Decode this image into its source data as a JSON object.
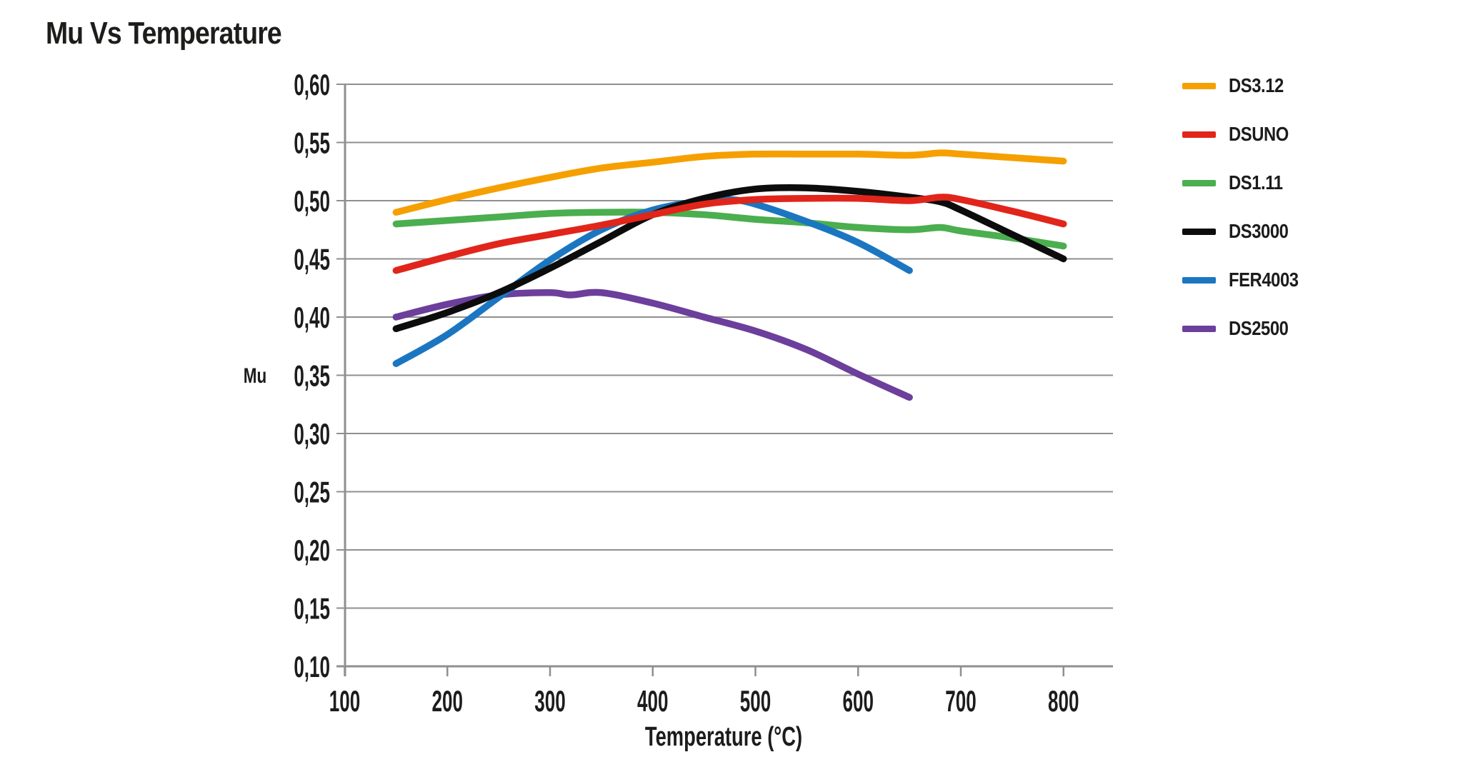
{
  "page": {
    "title": "Mu Vs Temperature"
  },
  "chart_data": {
    "type": "line",
    "title": "Mu Vs Temperature",
    "xlabel": "Temperature (°C)",
    "ylabel": "Mu",
    "xlim": [
      100,
      850
    ],
    "ylim": [
      0.1,
      0.6
    ],
    "grid": "horizontal",
    "grid_color": "#8f8f8f",
    "text_color": "#1c1c1c",
    "legend_position": "right",
    "decimal_separator": ",",
    "x_ticks": {
      "values": [
        100,
        200,
        300,
        400,
        500,
        600,
        700,
        800
      ],
      "labels": [
        "100",
        "200",
        "300",
        "400",
        "500",
        "600",
        "700",
        "800"
      ]
    },
    "y_ticks": {
      "values": [
        0.6,
        0.55,
        0.5,
        0.45,
        0.4,
        0.35,
        0.3,
        0.25,
        0.2,
        0.15,
        0.1
      ],
      "labels": [
        "0,60",
        "0,55",
        "0,50",
        "0,45",
        "0,40",
        "0,35",
        "0,30",
        "0,25",
        "0,20",
        "0,15",
        "0,10"
      ]
    },
    "draw_order": [
      "DS2500",
      "DS1.11",
      "FER4003",
      "DS3000",
      "DSUNO",
      "DS3.12"
    ],
    "series": [
      {
        "name": "DS3.12",
        "color": "#F5A000",
        "points": [
          [
            150,
            0.49
          ],
          [
            200,
            0.501
          ],
          [
            250,
            0.511
          ],
          [
            300,
            0.52
          ],
          [
            350,
            0.528
          ],
          [
            400,
            0.533
          ],
          [
            450,
            0.538
          ],
          [
            500,
            0.54
          ],
          [
            550,
            0.54
          ],
          [
            600,
            0.54
          ],
          [
            650,
            0.539
          ],
          [
            680,
            0.541
          ],
          [
            700,
            0.54
          ],
          [
            750,
            0.537
          ],
          [
            800,
            0.534
          ]
        ]
      },
      {
        "name": "DSUNO",
        "color": "#E1251B",
        "points": [
          [
            150,
            0.44
          ],
          [
            200,
            0.452
          ],
          [
            250,
            0.463
          ],
          [
            300,
            0.471
          ],
          [
            350,
            0.479
          ],
          [
            400,
            0.488
          ],
          [
            450,
            0.497
          ],
          [
            500,
            0.501
          ],
          [
            550,
            0.502
          ],
          [
            600,
            0.502
          ],
          [
            650,
            0.5
          ],
          [
            680,
            0.503
          ],
          [
            700,
            0.501
          ],
          [
            750,
            0.491
          ],
          [
            800,
            0.48
          ]
        ]
      },
      {
        "name": "DS1.11",
        "color": "#4BAE4F",
        "points": [
          [
            150,
            0.48
          ],
          [
            200,
            0.483
          ],
          [
            250,
            0.486
          ],
          [
            300,
            0.489
          ],
          [
            350,
            0.49
          ],
          [
            400,
            0.49
          ],
          [
            450,
            0.488
          ],
          [
            500,
            0.484
          ],
          [
            550,
            0.481
          ],
          [
            600,
            0.477
          ],
          [
            650,
            0.475
          ],
          [
            680,
            0.477
          ],
          [
            700,
            0.474
          ],
          [
            750,
            0.468
          ],
          [
            800,
            0.461
          ]
        ]
      },
      {
        "name": "DS3000",
        "color": "#0c0c0c",
        "points": [
          [
            150,
            0.39
          ],
          [
            200,
            0.404
          ],
          [
            250,
            0.421
          ],
          [
            300,
            0.442
          ],
          [
            350,
            0.465
          ],
          [
            400,
            0.488
          ],
          [
            450,
            0.502
          ],
          [
            500,
            0.51
          ],
          [
            550,
            0.511
          ],
          [
            600,
            0.508
          ],
          [
            650,
            0.503
          ],
          [
            680,
            0.499
          ],
          [
            700,
            0.492
          ],
          [
            750,
            0.471
          ],
          [
            800,
            0.45
          ]
        ]
      },
      {
        "name": "FER4003",
        "color": "#1B76C1",
        "points": [
          [
            150,
            0.36
          ],
          [
            200,
            0.385
          ],
          [
            250,
            0.417
          ],
          [
            300,
            0.449
          ],
          [
            350,
            0.475
          ],
          [
            400,
            0.492
          ],
          [
            450,
            0.5
          ],
          [
            475,
            0.501
          ],
          [
            500,
            0.497
          ],
          [
            550,
            0.482
          ],
          [
            600,
            0.464
          ],
          [
            650,
            0.44
          ]
        ]
      },
      {
        "name": "DS2500",
        "color": "#6B3F9B",
        "points": [
          [
            150,
            0.4
          ],
          [
            200,
            0.411
          ],
          [
            250,
            0.419
          ],
          [
            300,
            0.421
          ],
          [
            320,
            0.419
          ],
          [
            350,
            0.421
          ],
          [
            400,
            0.412
          ],
          [
            450,
            0.4
          ],
          [
            500,
            0.388
          ],
          [
            550,
            0.372
          ],
          [
            600,
            0.351
          ],
          [
            650,
            0.331
          ]
        ]
      }
    ]
  }
}
